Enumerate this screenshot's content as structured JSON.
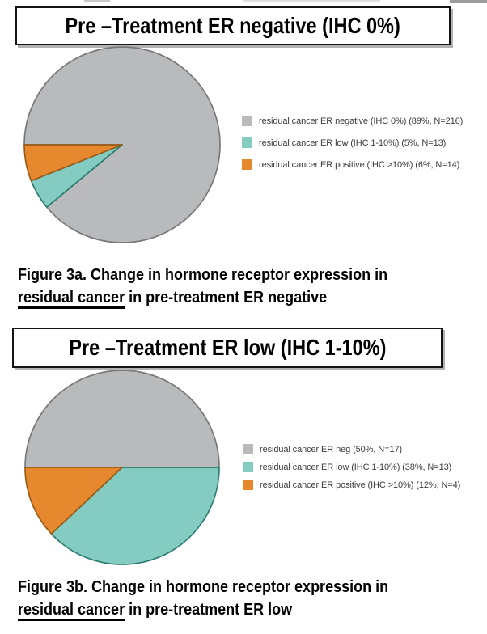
{
  "page": {
    "background": "#ffffff"
  },
  "colors": {
    "gray": "#b9babc",
    "teal": "#84cbc1",
    "orange": "#e5882e",
    "gray_stroke": "#77787b",
    "teal_stroke": "#2b7d73",
    "orange_stroke": "#9a5c19"
  },
  "figure_a": {
    "title": "Pre –Treatment ER negative (IHC 0%)",
    "legend": [
      {
        "label": "residual cancer ER negative (IHC 0%) (89%, N=216)"
      },
      {
        "label": "residual cancer ER low (IHC 1-10%) (5%, N=13)"
      },
      {
        "label": "residual cancer ER positive (IHC >10%) (6%, N=14)"
      }
    ],
    "caption_line1": "Figure 3a. Change in hormone receptor expression in",
    "caption_underlined": "residual cancer",
    "caption_line2_rest": " in pre-treatment ER negative"
  },
  "figure_b": {
    "title": "Pre –Treatment ER low (IHC 1-10%)",
    "legend": [
      {
        "label": "residual cancer ER neg (50%, N=17)"
      },
      {
        "label": "residual cancer ER low (IHC 1-10%) (38%, N=13)"
      },
      {
        "label": "residual cancer ER positive (IHC >10%) (12%, N=4)"
      }
    ],
    "caption_line1": "Figure 3b. Change in hormone receptor expression in",
    "caption_underlined": "residual cancer",
    "caption_line2_rest": " in pre-treatment ER low"
  },
  "chart_data": [
    {
      "type": "pie",
      "title": "Pre –Treatment ER negative (IHC 0%)",
      "labels": [
        "residual cancer ER negative (IHC 0%)",
        "residual cancer ER low (IHC 1-10%)",
        "residual cancer ER positive (IHC >10%)"
      ],
      "values": [
        89,
        5,
        6
      ],
      "counts": [
        216,
        13,
        14
      ],
      "colors": [
        "#b9babc",
        "#84cbc1",
        "#e5882e"
      ],
      "stroke_colors": [
        "#77787b",
        "#2b7d73",
        "#9a5c19"
      ],
      "start_angle_deg": 270,
      "direction": "clockwise",
      "legend_position": "right"
    },
    {
      "type": "pie",
      "title": "Pre –Treatment ER low (IHC 1-10%)",
      "labels": [
        "residual cancer ER neg",
        "residual cancer ER low (IHC 1-10%)",
        "residual cancer ER positive (IHC >10%)"
      ],
      "values": [
        50,
        38,
        12
      ],
      "counts": [
        17,
        13,
        4
      ],
      "colors": [
        "#b9babc",
        "#84cbc1",
        "#e5882e"
      ],
      "stroke_colors": [
        "#77787b",
        "#2b7d73",
        "#9a5c19"
      ],
      "start_angle_deg": 270,
      "direction": "clockwise",
      "legend_position": "right"
    }
  ]
}
